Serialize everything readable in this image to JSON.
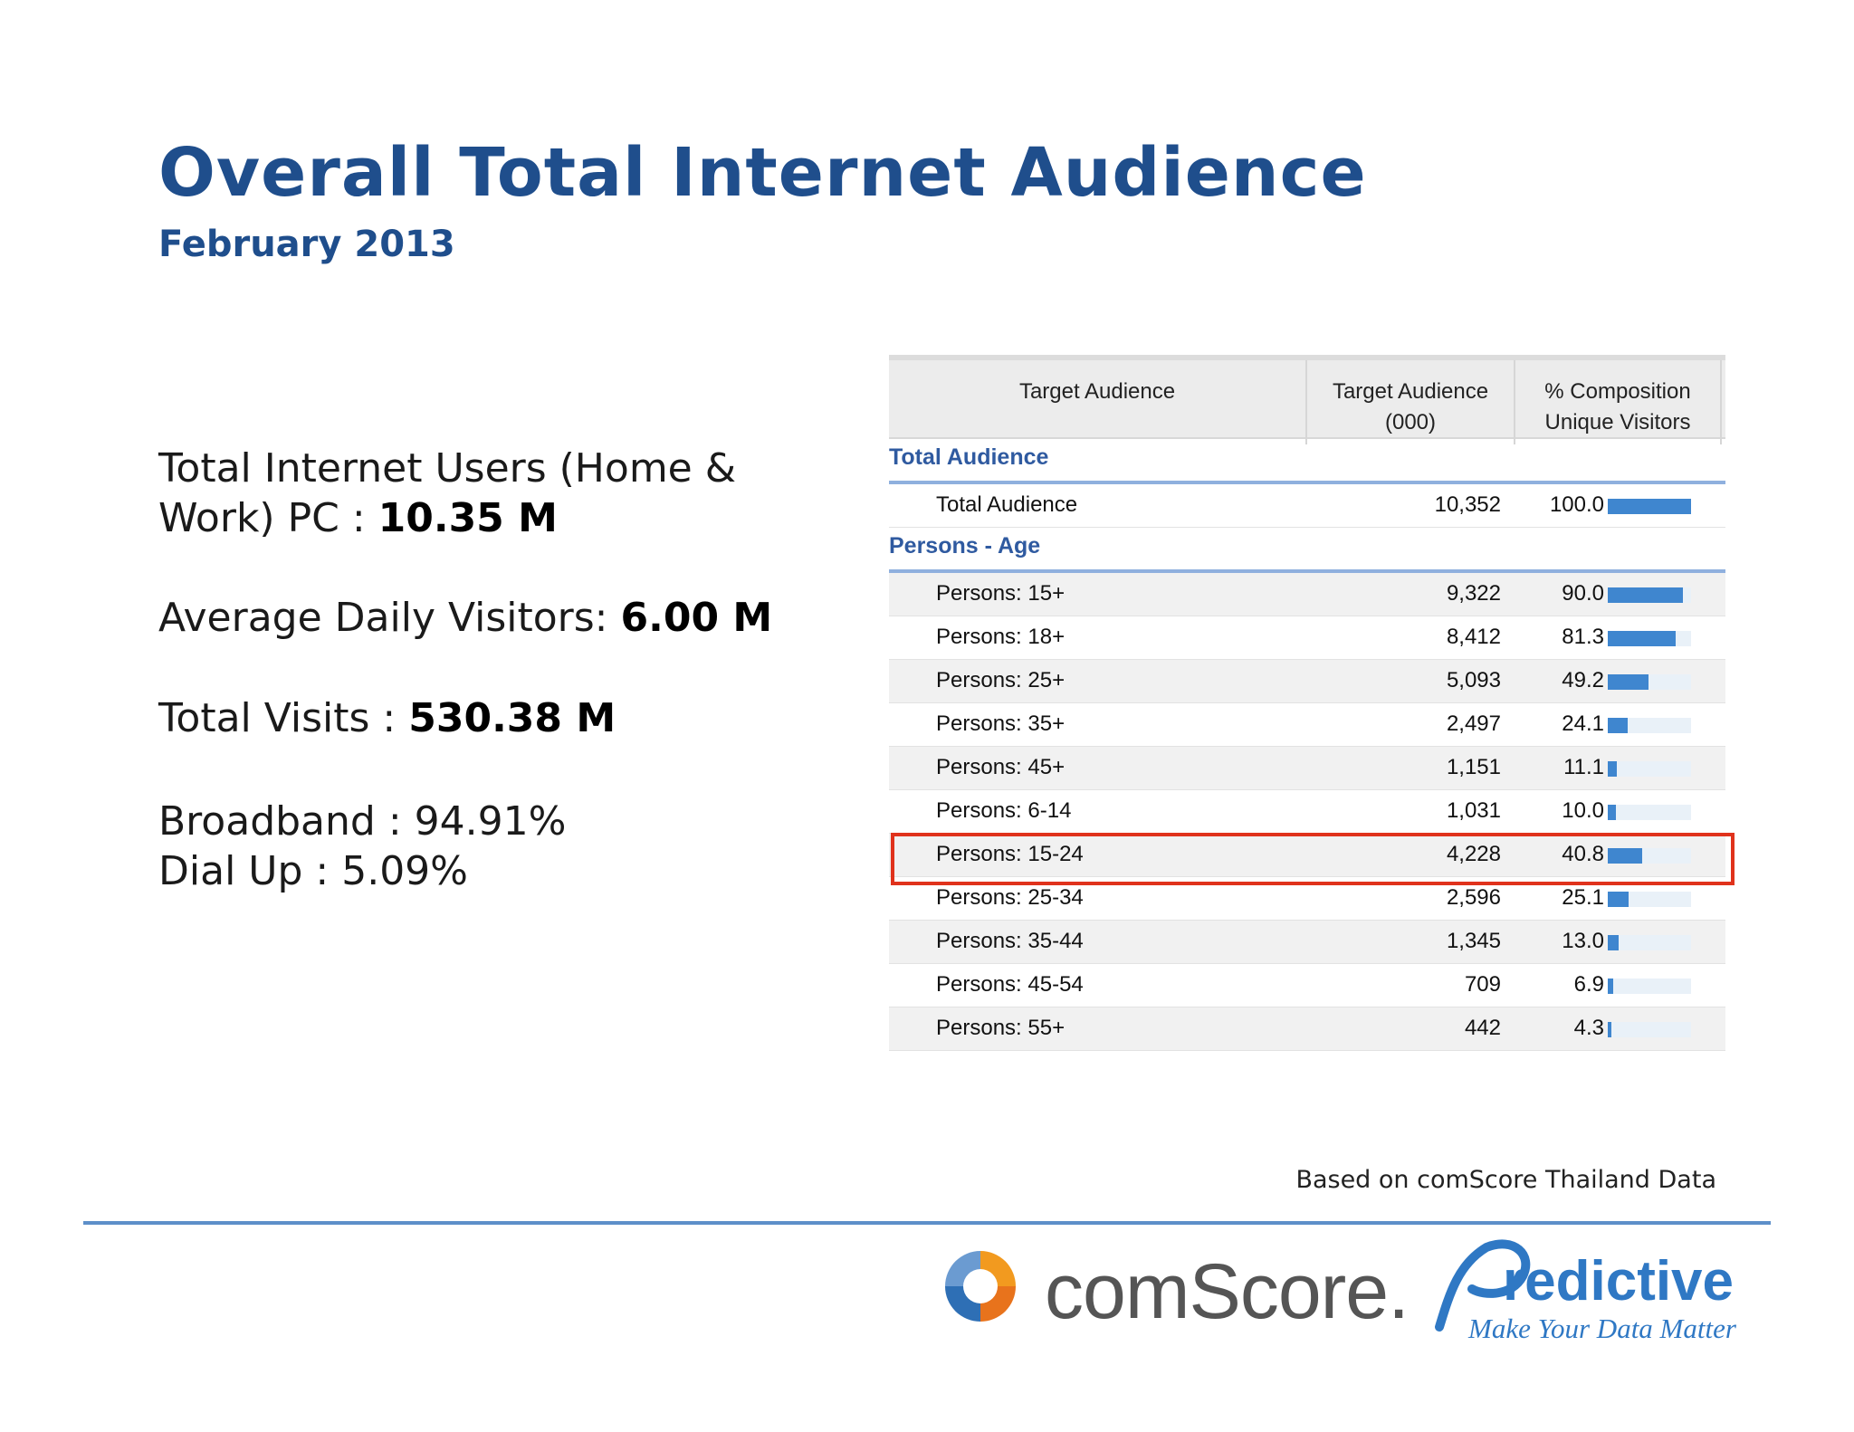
{
  "title": "Overall Total Internet Audience",
  "subtitle": "February 2013",
  "stats": {
    "users_label": "Total Internet Users (Home & Work) PC : ",
    "users_value": "10.35 M",
    "daily_label": "Average Daily Visitors: ",
    "daily_value": "6.00 M",
    "visits_label": "Total Visits : ",
    "visits_value": "530.38 M",
    "broadband": "Broadband : 94.91%",
    "dialup": "Dial Up : 5.09%"
  },
  "table": {
    "headers": [
      "Target Audience",
      "Target Audience (000)",
      "% Composition Unique Visitors"
    ],
    "sections": [
      {
        "title": "Total Audience",
        "rows": [
          {
            "label": "Total Audience",
            "value": "10,352",
            "pct": "100.0",
            "pct_num": 100.0
          }
        ]
      },
      {
        "title": "Persons - Age",
        "rows": [
          {
            "label": "Persons: 15+",
            "value": "9,322",
            "pct": "90.0",
            "pct_num": 90.0
          },
          {
            "label": "Persons: 18+",
            "value": "8,412",
            "pct": "81.3",
            "pct_num": 81.3
          },
          {
            "label": "Persons: 25+",
            "value": "5,093",
            "pct": "49.2",
            "pct_num": 49.2
          },
          {
            "label": "Persons: 35+",
            "value": "2,497",
            "pct": "24.1",
            "pct_num": 24.1
          },
          {
            "label": "Persons: 45+",
            "value": "1,151",
            "pct": "11.1",
            "pct_num": 11.1
          },
          {
            "label": "Persons: 6-14",
            "value": "1,031",
            "pct": "10.0",
            "pct_num": 10.0
          },
          {
            "label": "Persons: 15-24",
            "value": "4,228",
            "pct": "40.8",
            "pct_num": 40.8,
            "highlighted": true
          },
          {
            "label": "Persons: 25-34",
            "value": "2,596",
            "pct": "25.1",
            "pct_num": 25.1
          },
          {
            "label": "Persons: 35-44",
            "value": "1,345",
            "pct": "13.0",
            "pct_num": 13.0
          },
          {
            "label": "Persons: 45-54",
            "value": "709",
            "pct": "6.9",
            "pct_num": 6.9
          },
          {
            "label": "Persons: 55+",
            "value": "442",
            "pct": "4.3",
            "pct_num": 4.3
          }
        ]
      }
    ]
  },
  "source": "Based on comScore Thailand Data",
  "logos": {
    "comscore": "comScore.",
    "predictive": "redictive",
    "predictive_tagline": "Make Your Data Matter"
  },
  "colors": {
    "title": "#1f4e8c",
    "section": "#2f5aa0",
    "bar": "#3f86cf",
    "highlight": "#e0321c",
    "rule": "#5d8fc9"
  }
}
